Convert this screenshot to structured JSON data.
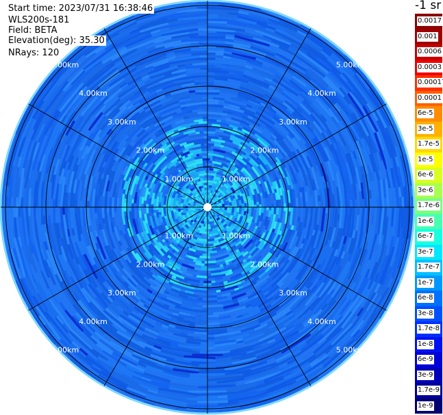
{
  "header": {
    "start_time": "Start time: 2023/07/31 16:38:46",
    "instrument": "WLS200s-181",
    "field": "Field: BETA",
    "elevation_label": "Elevation(deg):",
    "elevation_value": "35.30",
    "nrays": "NRays: 120"
  },
  "colorbar": {
    "unit": "-1 sr",
    "labels": [
      "0.0017",
      "0.001",
      "0.0006",
      "0.0003",
      "0.00017",
      "0.0001",
      "6e-5",
      "3e-5",
      "1.7e-5",
      "1e-5",
      "6e-6",
      "3e-6",
      "1.7e-6",
      "1e-6",
      "6e-7",
      "3e-7",
      "1.7e-7",
      "1e-7",
      "6e-8",
      "3e-8",
      "1.7e-8",
      "1e-8",
      "6e-9",
      "3e-9",
      "1.7e-9",
      "1e-9"
    ],
    "colors": [
      "#8b0000",
      "#a00000",
      "#c80000",
      "#f00000",
      "#ff3000",
      "#ff6000",
      "#ff8c00",
      "#ffb000",
      "#ffd800",
      "#ffff00",
      "#d8ff20",
      "#a8ff50",
      "#78ff80",
      "#48ffb0",
      "#18ffe0",
      "#00e8ff",
      "#00c0ff",
      "#0098ff",
      "#0070ff",
      "#0050ff",
      "#0030ff",
      "#0010f0",
      "#0000d8",
      "#0000b8",
      "#000098",
      "#000070"
    ]
  },
  "rings": {
    "labels": [
      "1.00km",
      "2.00km",
      "3.00km",
      "4.00km",
      "5.00km"
    ]
  }
}
